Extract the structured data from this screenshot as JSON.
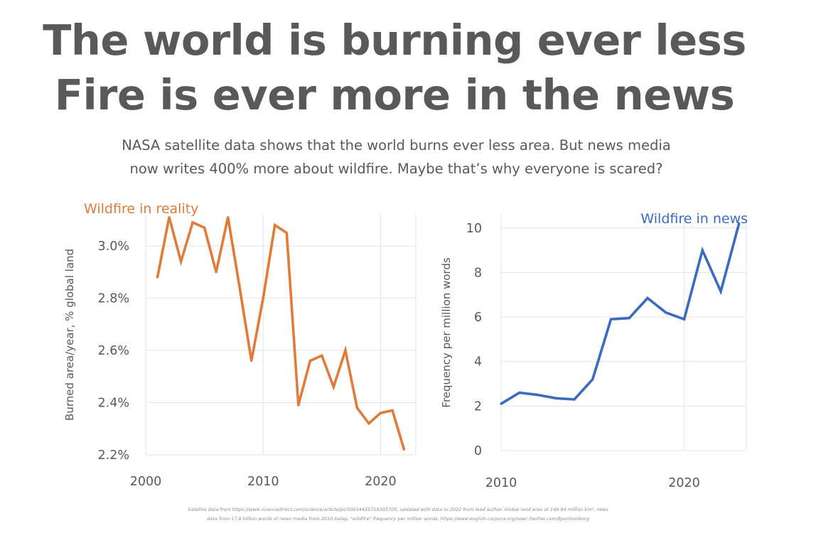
{
  "title_line1": "The world is burning ever less",
  "title_line2": "Fire is ever more in the news",
  "subtitle_line1": "NASA satellite data shows that the world burns ever less area. But news media",
  "subtitle_line2": "now writes 400% more about wildfire. Maybe that’s why everyone is scared?",
  "source_line1": "Satellite data from https://www.sciencedirect.com/science/article/pii/S0034425718305705, updated with data to 2022 from lead author. Global land area at 148.94 million km², news",
  "source_line2": "data from 17.8 billion words of news media from 2010-today, \"wildfire\" frequency per million words, https://www.english-corpora.org/now/ /twitter.com/bjornlomborg",
  "chart_data": [
    {
      "type": "line",
      "title": "Wildfire in reality",
      "xlabel": "",
      "ylabel": "Burned area/year, % global land",
      "color": "#E07B39",
      "x": [
        2001,
        2002,
        2003,
        2004,
        2005,
        2006,
        2007,
        2008,
        2009,
        2010,
        2011,
        2012,
        2013,
        2014,
        2015,
        2016,
        2017,
        2018,
        2019,
        2020,
        2021,
        2022
      ],
      "y": [
        2.88,
        3.11,
        2.94,
        3.09,
        3.07,
        2.9,
        3.11,
        2.84,
        2.56,
        2.8,
        3.08,
        3.05,
        2.39,
        2.56,
        2.58,
        2.46,
        2.6,
        2.38,
        2.32,
        2.36,
        2.37,
        2.22
      ],
      "xlim": [
        2000,
        2023
      ],
      "ylim": [
        2.2,
        3.12
      ],
      "xticks": [
        2000,
        2010,
        2020
      ],
      "xtick_labels": [
        "2000",
        "2010",
        "2020"
      ],
      "yticks": [
        2.2,
        2.4,
        2.6,
        2.8,
        3.0
      ],
      "ytick_labels": [
        "2.2%",
        "2.4%",
        "2.6%",
        "2.8%",
        "3.0%"
      ],
      "grid": true
    },
    {
      "type": "line",
      "title": "Wildfire in news",
      "xlabel": "",
      "ylabel": "Frequency per million words",
      "color": "#3A6BBF",
      "x": [
        2010,
        2011,
        2012,
        2013,
        2014,
        2015,
        2016,
        2017,
        2018,
        2019,
        2020,
        2021,
        2022,
        2023
      ],
      "y": [
        2.1,
        2.6,
        2.5,
        2.35,
        2.3,
        3.2,
        5.9,
        5.95,
        6.85,
        6.2,
        5.9,
        9.0,
        7.15,
        10.2
      ],
      "xlim": [
        2010,
        2023.4
      ],
      "ylim": [
        0,
        10.6
      ],
      "xticks": [
        2010,
        2020
      ],
      "xtick_labels": [
        "2010",
        "2020"
      ],
      "yticks": [
        0,
        2,
        4,
        6,
        8,
        10
      ],
      "ytick_labels": [
        "0",
        "2",
        "4",
        "6",
        "8",
        "10"
      ],
      "grid": true
    }
  ]
}
